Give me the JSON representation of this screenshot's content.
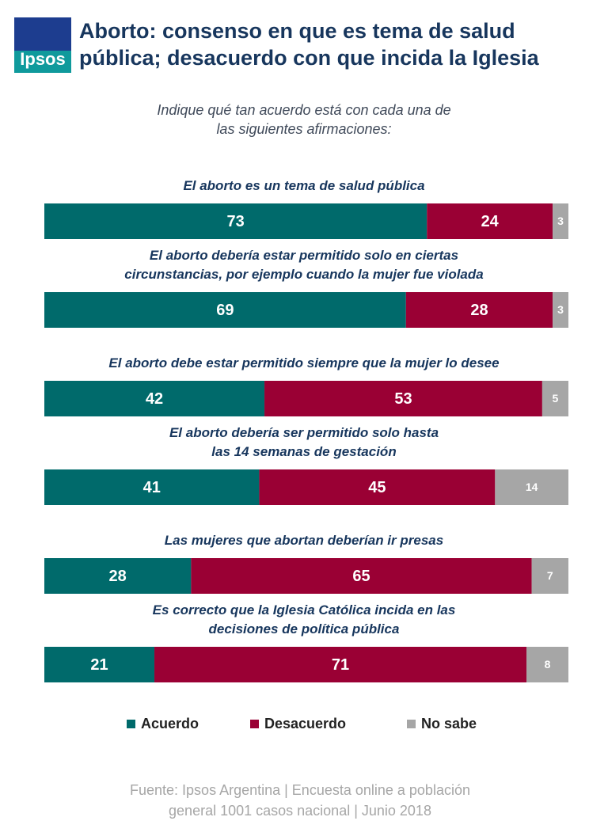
{
  "logo": "Ipsos",
  "chart_data": {
    "type": "stacked-bar-horizontal",
    "title": "Aborto: consenso en que es tema de salud\npública; desacuerdo con que incida la Iglesia",
    "subtitle": "Indique qué tan acuerdo está con cada una de\nlas siguientes afirmaciones:",
    "categories": [
      "El aborto es un tema de salud pública",
      "El aborto debería estar permitido solo en ciertas\ncircunstancias, por ejemplo cuando la mujer fue violada",
      "El aborto debe estar permitido siempre que la mujer lo desee",
      "El aborto debería ser permitido solo hasta\nlas 14 semanas de gestación",
      "Las mujeres que abortan deberían ir presas",
      "Es correcto que la Iglesia Católica incida en las\ndecisiones de política pública"
    ],
    "series": [
      {
        "name": "Acuerdo",
        "color": "#006a6b",
        "values": [
          73,
          69,
          42,
          41,
          28,
          21
        ]
      },
      {
        "name": "Desacuerdo",
        "color": "#9a0034",
        "values": [
          24,
          28,
          53,
          45,
          65,
          71
        ]
      },
      {
        "name": "No sabe",
        "color": "#a6a6a6",
        "values": [
          3,
          3,
          5,
          14,
          7,
          8
        ]
      }
    ],
    "xlim": [
      0,
      100
    ],
    "source": "Fuente: Ipsos Argentina  | Encuesta online a población\ngeneral 1001 casos nacional  |  Junio 2018"
  }
}
